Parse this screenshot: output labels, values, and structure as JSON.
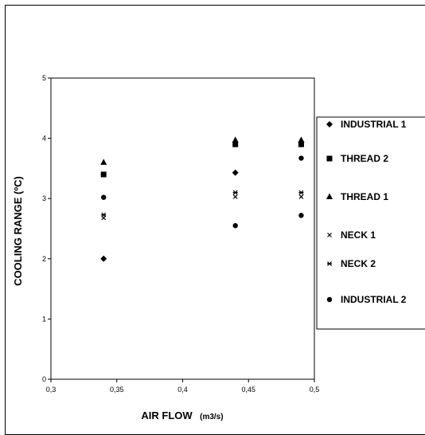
{
  "chart_data": {
    "type": "scatter",
    "xlabel": "AIR FLOW",
    "xlabel_unit": "(m3/s)",
    "ylabel": "COOLING RANGE (ºC)",
    "xlim": [
      0.3,
      0.5
    ],
    "ylim": [
      0,
      5
    ],
    "x_ticks": [
      "0,3",
      "0,35",
      "0,4",
      "0,45",
      "0,5"
    ],
    "y_ticks": [
      "0",
      "1",
      "2",
      "3",
      "4",
      "5"
    ],
    "grid": false,
    "legend_position": "right",
    "series": [
      {
        "name": "INDUSTRIAL 1",
        "marker": "diamond",
        "x": [
          0.34,
          0.44,
          0.49
        ],
        "y": [
          2.0,
          3.43,
          3.93
        ]
      },
      {
        "name": "THREAD 2",
        "marker": "square",
        "x": [
          0.34,
          0.44,
          0.49
        ],
        "y": [
          3.4,
          3.9,
          3.9
        ]
      },
      {
        "name": "THREAD 1",
        "marker": "triangle",
        "x": [
          0.34,
          0.44,
          0.49
        ],
        "y": [
          3.6,
          3.97,
          3.97
        ]
      },
      {
        "name": "NECK 1",
        "marker": "x",
        "x": [
          0.34,
          0.44,
          0.49
        ],
        "y": [
          2.68,
          3.03,
          3.03
        ]
      },
      {
        "name": "NECK 2",
        "marker": "star",
        "x": [
          0.34,
          0.44,
          0.49
        ],
        "y": [
          2.73,
          3.1,
          3.1
        ]
      },
      {
        "name": "INDUSTRIAL 2",
        "marker": "circle",
        "x": [
          0.34,
          0.44,
          0.49
        ],
        "y": [
          3.02,
          2.55,
          2.72
        ]
      }
    ],
    "extra_points": [
      {
        "marker": "circle",
        "x": 0.49,
        "y": 3.67
      }
    ]
  }
}
